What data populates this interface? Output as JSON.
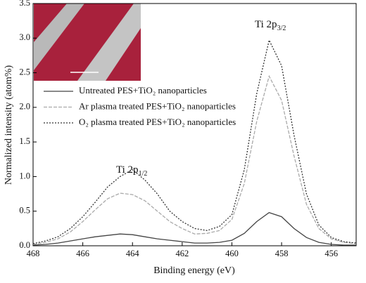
{
  "chart_data": {
    "type": "line",
    "xlabel": "Binding energy (eV)",
    "ylabel": "Normalized intensity (atom%)",
    "xlim": [
      468,
      455
    ],
    "ylim": [
      0,
      3.5
    ],
    "xticks": [
      468,
      466,
      464,
      462,
      460,
      458,
      456
    ],
    "yticks": [
      {
        "value": 0,
        "label": "0.0"
      },
      0.5,
      {
        "value": 1,
        "label": "1.0"
      },
      1.5,
      {
        "value": 2,
        "label": "2.0"
      },
      2.5,
      {
        "value": 3,
        "label": "3.0"
      },
      3.5
    ],
    "x": [
      468,
      467.5,
      467,
      466.5,
      466,
      465.5,
      465,
      464.5,
      464,
      463.5,
      463,
      462.5,
      462,
      461.5,
      461,
      460.5,
      460,
      459.5,
      459,
      458.5,
      458,
      457.5,
      457,
      456.5,
      456,
      455.5,
      455
    ],
    "series": [
      {
        "name": "Untreated PES+TiO₂ nanoparticles",
        "color": "#444444",
        "dash": "none",
        "values": [
          0.01,
          0.02,
          0.04,
          0.07,
          0.1,
          0.13,
          0.15,
          0.17,
          0.16,
          0.13,
          0.1,
          0.08,
          0.06,
          0.04,
          0.04,
          0.05,
          0.08,
          0.18,
          0.35,
          0.48,
          0.42,
          0.25,
          0.12,
          0.05,
          0.02,
          0.01,
          0.01
        ]
      },
      {
        "name": "Ar plasma treated PES+TiO₂ nanoparticles",
        "color": "#aaaaaa",
        "dash": "5 2",
        "values": [
          0.02,
          0.05,
          0.1,
          0.2,
          0.35,
          0.52,
          0.68,
          0.76,
          0.74,
          0.65,
          0.5,
          0.35,
          0.25,
          0.17,
          0.18,
          0.22,
          0.38,
          0.9,
          1.8,
          2.45,
          2.1,
          1.3,
          0.6,
          0.25,
          0.1,
          0.05,
          0.03
        ]
      },
      {
        "name": "O₂ plasma treated PES+TiO₂ nanoparticles",
        "color": "#333333",
        "dash": "2 2",
        "values": [
          0.03,
          0.07,
          0.13,
          0.25,
          0.42,
          0.63,
          0.85,
          1.0,
          1.1,
          0.95,
          0.75,
          0.5,
          0.35,
          0.25,
          0.22,
          0.28,
          0.45,
          1.1,
          2.2,
          2.97,
          2.6,
          1.6,
          0.75,
          0.3,
          0.12,
          0.06,
          0.04
        ]
      }
    ],
    "annotations": [
      {
        "text": "Ti 2p",
        "sub": "1/2"
      },
      {
        "text": "Ti 2p",
        "sub": "3/2"
      }
    ]
  }
}
